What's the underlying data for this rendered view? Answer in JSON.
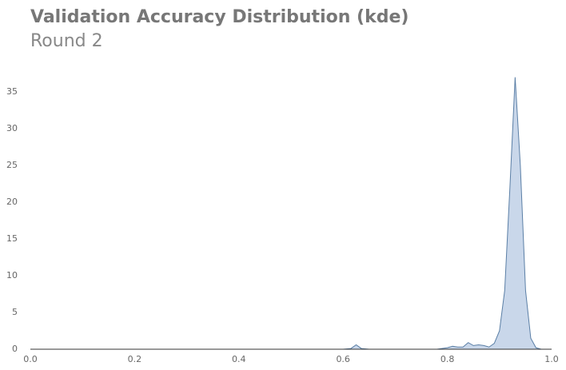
{
  "chart_data": {
    "type": "area",
    "title": "Validation Accuracy Distribution (kde)",
    "subtitle": "Round 2",
    "x": [
      0.0,
      0.6,
      0.615,
      0.625,
      0.635,
      0.65,
      0.78,
      0.8,
      0.81,
      0.82,
      0.83,
      0.84,
      0.85,
      0.86,
      0.87,
      0.88,
      0.89,
      0.9,
      0.91,
      0.92,
      0.93,
      0.94,
      0.95,
      0.96,
      0.97,
      0.98
    ],
    "values": [
      0,
      0,
      0.1,
      0.6,
      0.1,
      0,
      0,
      0.2,
      0.4,
      0.3,
      0.3,
      0.9,
      0.5,
      0.6,
      0.5,
      0.3,
      0.8,
      2.5,
      8,
      22,
      37,
      25,
      8,
      1.5,
      0.2,
      0
    ],
    "color": "#c9d7ea",
    "line_color": "#5b7fa6",
    "xlim": [
      0,
      1
    ],
    "xticks": [
      {
        "value": 0,
        "label": "0.0"
      },
      0.2,
      0.4,
      0.6,
      0.8,
      {
        "value": 1,
        "label": "1.0"
      }
    ],
    "ylim": [
      0,
      40
    ],
    "yticks": [
      0,
      5,
      10,
      15,
      20,
      25,
      30,
      35
    ]
  }
}
